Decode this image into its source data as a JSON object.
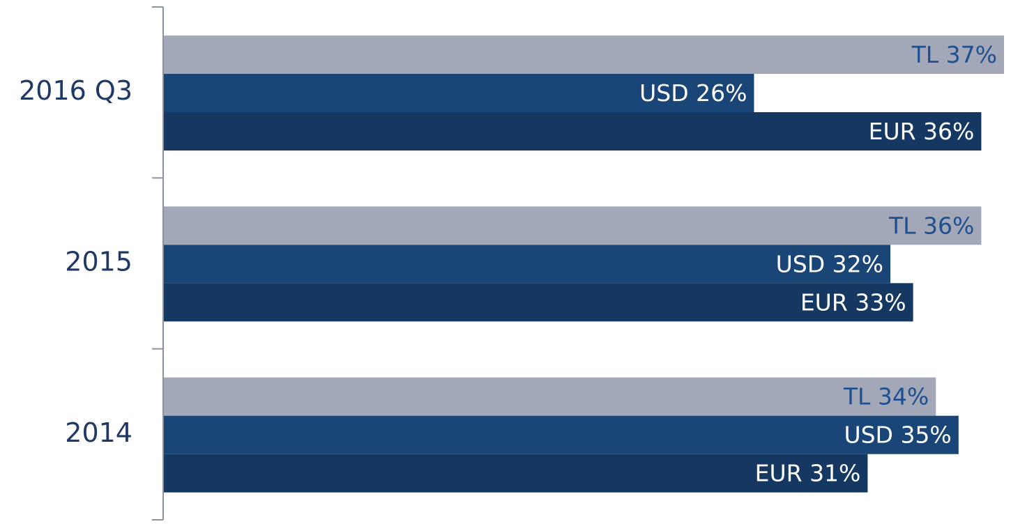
{
  "chart_data": {
    "type": "barh",
    "categories": [
      "2016 Q3",
      "2015",
      "2014"
    ],
    "series": [
      {
        "name": "TL",
        "color": "#a2a8b8",
        "label_color": "#1f4f8f",
        "values": [
          37,
          36,
          34
        ],
        "value_labels": [
          "TL 37%",
          "TL 36%",
          "TL 34%"
        ]
      },
      {
        "name": "USD",
        "color": "#1a4677",
        "label_color": "#ffffff",
        "values": [
          26,
          32,
          35
        ],
        "value_labels": [
          "USD 26%",
          "USD 32%",
          "USD 35%"
        ]
      },
      {
        "name": "EUR",
        "color": "#153862",
        "label_color": "#ffffff",
        "values": [
          36,
          33,
          31
        ],
        "value_labels": [
          "EUR 36%",
          "EUR 33%",
          "EUR 31%"
        ]
      }
    ]
  }
}
